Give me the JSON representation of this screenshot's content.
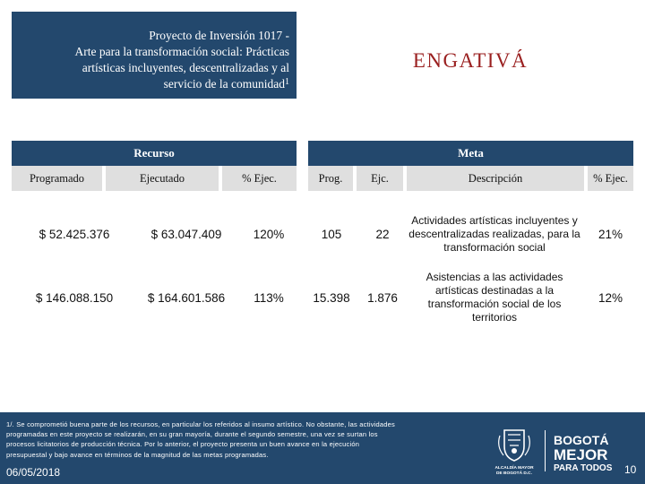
{
  "header": {
    "project_line1": "Proyecto de Inversión 1017 -",
    "project_line2": "Arte para la transformación social: Prácticas",
    "project_line3": "artísticas incluyentes, descentralizadas y al",
    "project_line4": "servicio de la comunidad",
    "footnote_marker": "1",
    "locality": "ENGATIVÁ"
  },
  "table": {
    "group_recurso": "Recurso",
    "group_meta": "Meta",
    "columns": {
      "programado": "Programado",
      "ejecutado": "Ejecutado",
      "pct_ejec_recurso": "% Ejec.",
      "prog": "Prog.",
      "ejc": "Ejc.",
      "descripcion": "Descripción",
      "pct_ejec_meta": "% Ejec."
    },
    "rows": [
      {
        "programado": "$ 52.425.376",
        "ejecutado": "$ 63.047.409",
        "pct_recurso": "120%",
        "prog": "105",
        "ejc": "22",
        "descripcion": "Actividades artísticas incluyentes y descentralizadas realizadas, para la transformación social",
        "pct_meta": "21%"
      },
      {
        "programado": "$ 146.088.150",
        "ejecutado": "$ 164.601.586",
        "pct_recurso": "113%",
        "prog": "15.398",
        "ejc": "1.876",
        "descripcion": "Asistencias a las actividades artísticas destinadas a la transformación social de los territorios",
        "pct_meta": "12%"
      }
    ]
  },
  "footer": {
    "footnote_line1": "1/. Se comprometió buena parte de los recursos, en particular los referidos al insumo artístico. No obstante, las actividades",
    "footnote_line2": "programadas en este proyecto se realizarán, en su gran mayoría, durante el segundo semestre, una vez se surtan los",
    "footnote_line3": "procesos licitatorios de producción técnica. Por lo anterior, el proyecto presenta un buen avance en la ejecución",
    "footnote_line4": "presupuestal y bajo avance en términos de la magnitud de las metas programadas.",
    "date": "06/05/2018",
    "page_number": "10",
    "logo_alcaldia_line1": "ALCALDÍA MAYOR",
    "logo_alcaldia_line2": "DE BOGOTÁ D.C.",
    "logo_bogota_line1": "BOGOTÁ",
    "logo_bogota_line2": "MEJOR",
    "logo_bogota_line3": "PARA TODOS"
  },
  "colors": {
    "navy": "#23486d",
    "header_gray": "#dfdfdf",
    "locality_red": "#9a2020"
  }
}
